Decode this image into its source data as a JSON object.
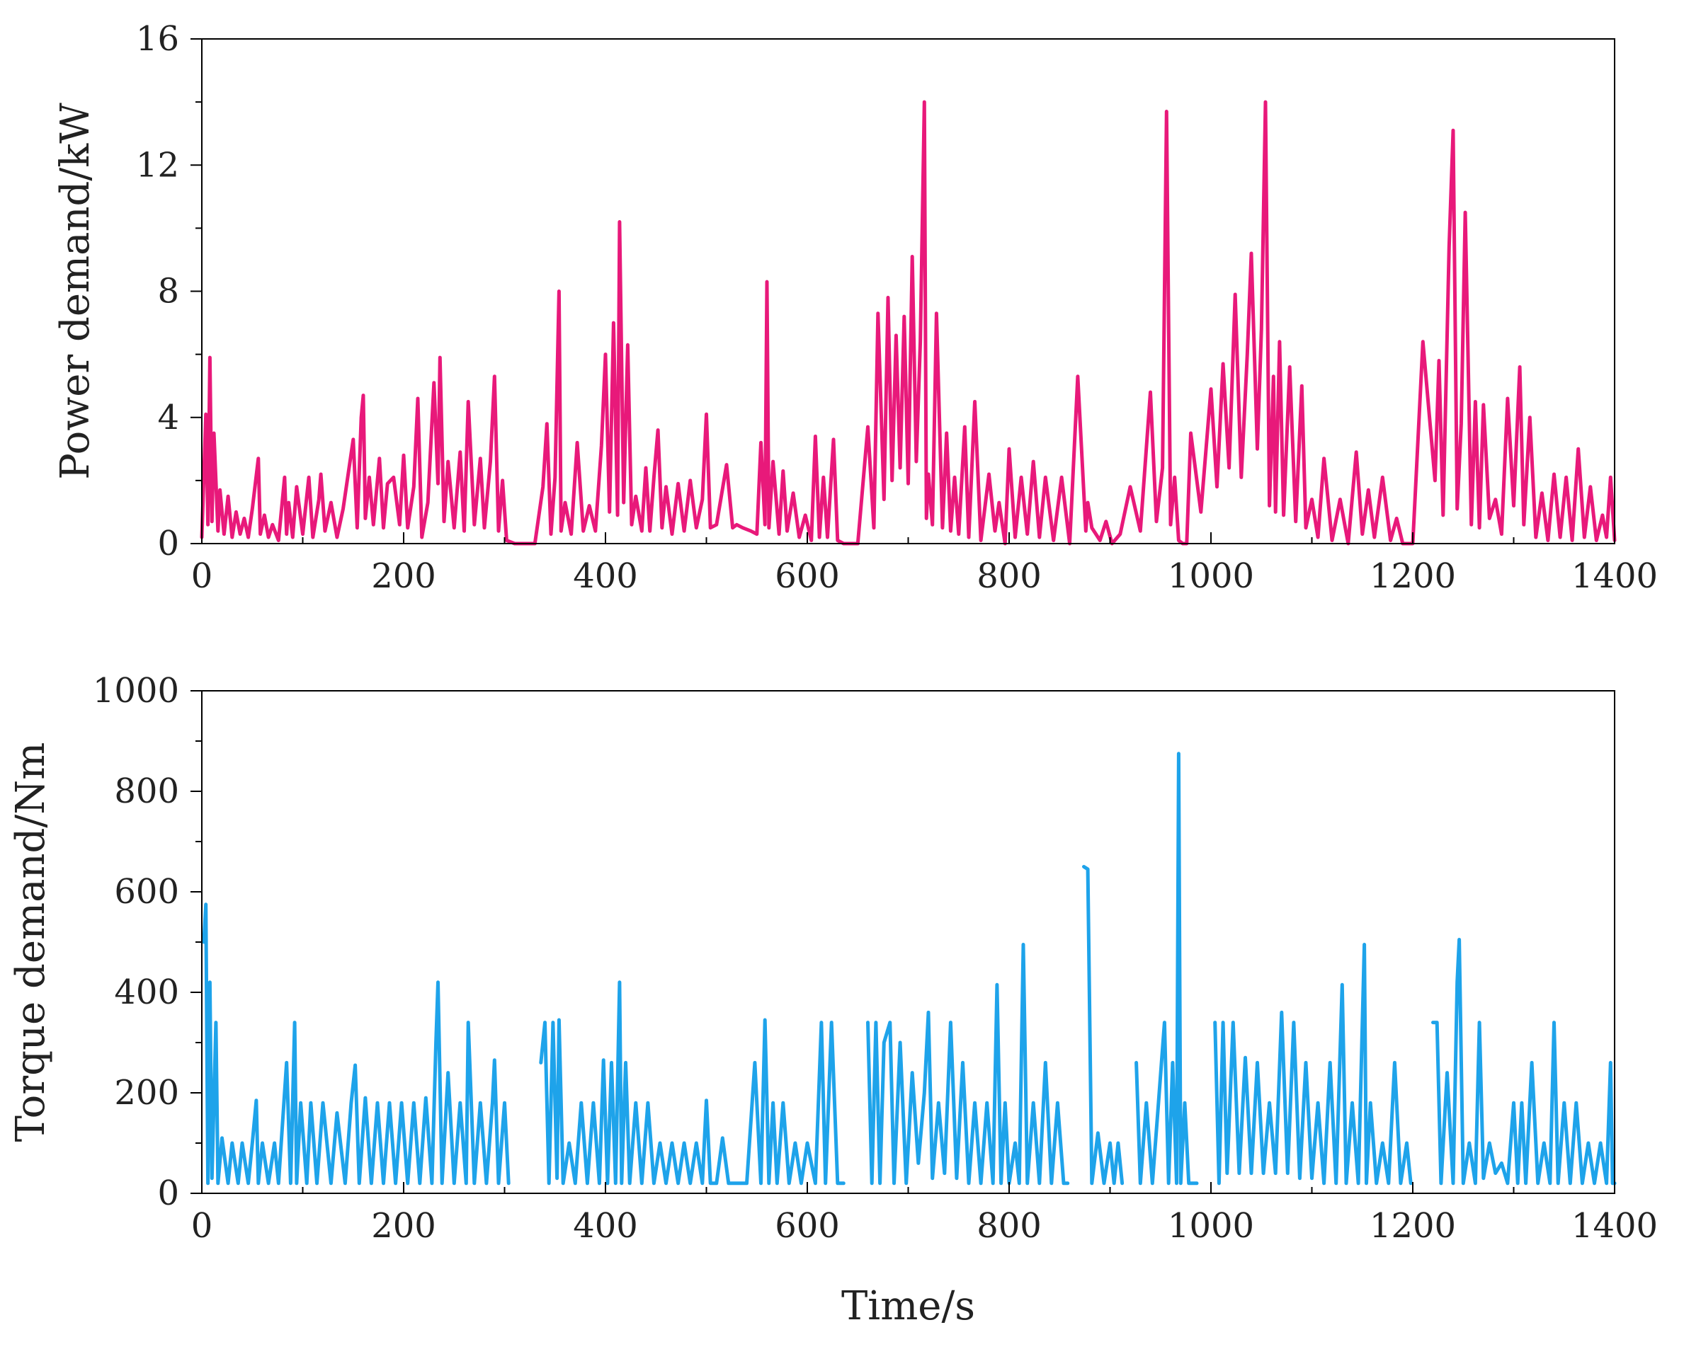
{
  "chart_data": [
    {
      "type": "line",
      "title": "",
      "xlabel": "",
      "ylabel": "Power demand/kW",
      "xlim": [
        0,
        1400
      ],
      "ylim": [
        0,
        16
      ],
      "x_ticks": [
        0,
        200,
        400,
        600,
        800,
        1000,
        1200,
        1400
      ],
      "y_ticks": [
        0,
        4,
        8,
        12,
        16
      ],
      "grid": false,
      "legend": "none",
      "series": [
        {
          "color": "#e8197a",
          "x": [
            0,
            4,
            6,
            8,
            10,
            12,
            16,
            18,
            22,
            26,
            30,
            34,
            38,
            42,
            46,
            50,
            56,
            58,
            62,
            66,
            70,
            76,
            82,
            84,
            86,
            90,
            94,
            100,
            106,
            110,
            116,
            118,
            122,
            128,
            134,
            140,
            150,
            154,
            158,
            160,
            162,
            166,
            170,
            176,
            180,
            184,
            190,
            196,
            200,
            204,
            210,
            214,
            218,
            224,
            230,
            234,
            236,
            240,
            244,
            250,
            256,
            260,
            264,
            270,
            276,
            280,
            286,
            290,
            294,
            298,
            302,
            310,
            320,
            330,
            338,
            342,
            346,
            350,
            354,
            356,
            360,
            366,
            372,
            378,
            384,
            390,
            396,
            400,
            404,
            408,
            412,
            414,
            418,
            422,
            426,
            430,
            436,
            440,
            444,
            448,
            452,
            456,
            460,
            466,
            472,
            478,
            484,
            490,
            496,
            500,
            504,
            510,
            520,
            526,
            530,
            536,
            544,
            550,
            554,
            558,
            560,
            562,
            566,
            572,
            576,
            580,
            586,
            592,
            598,
            604,
            608,
            612,
            616,
            620,
            626,
            630,
            636,
            642,
            650,
            660,
            666,
            670,
            676,
            680,
            684,
            688,
            692,
            696,
            700,
            704,
            708,
            712,
            716,
            718,
            720,
            724,
            728,
            734,
            738,
            742,
            746,
            750,
            756,
            760,
            766,
            772,
            780,
            786,
            790,
            796,
            800,
            806,
            812,
            818,
            824,
            830,
            836,
            844,
            852,
            860,
            868,
            876,
            878,
            882,
            886,
            890,
            896,
            902,
            910,
            920,
            930,
            940,
            946,
            952,
            956,
            960,
            964,
            968,
            972,
            976,
            980,
            990,
            1000,
            1006,
            1012,
            1018,
            1024,
            1030,
            1036,
            1040,
            1046,
            1050,
            1054,
            1058,
            1062,
            1064,
            1068,
            1072,
            1078,
            1084,
            1090,
            1094,
            1100,
            1106,
            1112,
            1120,
            1128,
            1136,
            1144,
            1150,
            1156,
            1162,
            1170,
            1178,
            1184,
            1190,
            1196,
            1200,
            1210,
            1222,
            1226,
            1230,
            1236,
            1240,
            1244,
            1248,
            1252,
            1258,
            1262,
            1266,
            1270,
            1276,
            1282,
            1288,
            1294,
            1300,
            1306,
            1310,
            1316,
            1322,
            1328,
            1334,
            1340,
            1346,
            1352,
            1358,
            1364,
            1370,
            1376,
            1382,
            1388,
            1392,
            1396,
            1400
          ],
          "y": [
            0.2,
            4.1,
            0.6,
            5.9,
            0.7,
            3.5,
            0.4,
            1.7,
            0.3,
            1.5,
            0.2,
            1.0,
            0.3,
            0.8,
            0.2,
            1.1,
            2.7,
            0.3,
            0.9,
            0.2,
            0.6,
            0.1,
            2.1,
            0.3,
            1.3,
            0.2,
            1.8,
            0.3,
            2.1,
            0.2,
            1.4,
            2.2,
            0.4,
            1.3,
            0.2,
            1.1,
            3.3,
            0.5,
            4.0,
            4.7,
            0.8,
            2.1,
            0.6,
            2.7,
            0.5,
            1.9,
            2.1,
            0.6,
            2.8,
            0.5,
            1.8,
            4.6,
            0.2,
            1.3,
            5.1,
            1.9,
            5.9,
            0.7,
            2.6,
            0.5,
            2.9,
            0.4,
            4.5,
            0.6,
            2.7,
            0.5,
            2.6,
            5.3,
            0.4,
            2.0,
            0.1,
            0.0,
            0.0,
            0.0,
            1.8,
            3.8,
            0.3,
            2.1,
            8.0,
            0.4,
            1.3,
            0.3,
            3.2,
            0.4,
            1.2,
            0.4,
            3.1,
            6.0,
            1.0,
            7.0,
            0.9,
            10.2,
            1.3,
            6.3,
            0.6,
            1.5,
            0.4,
            2.4,
            0.4,
            2.1,
            3.6,
            0.5,
            1.8,
            0.3,
            1.9,
            0.4,
            2.0,
            0.5,
            1.4,
            4.1,
            0.5,
            0.6,
            2.5,
            0.5,
            0.6,
            0.5,
            0.4,
            0.3,
            3.2,
            0.6,
            8.3,
            0.5,
            2.6,
            0.3,
            2.3,
            0.4,
            1.6,
            0.2,
            0.9,
            0.1,
            3.4,
            0.2,
            2.1,
            0.2,
            3.3,
            0.1,
            0.0,
            0.0,
            0.0,
            3.7,
            0.5,
            7.3,
            1.4,
            7.8,
            2.0,
            6.6,
            2.4,
            7.2,
            1.9,
            9.1,
            2.6,
            6.4,
            14.0,
            0.8,
            2.2,
            0.6,
            7.3,
            0.5,
            3.5,
            0.4,
            2.1,
            0.3,
            3.7,
            0.2,
            4.5,
            0.1,
            2.2,
            0.4,
            1.3,
            0.0,
            3.0,
            0.2,
            2.1,
            0.3,
            2.6,
            0.2,
            2.1,
            0.1,
            2.1,
            0.0,
            5.3,
            0.4,
            1.3,
            0.5,
            0.3,
            0.1,
            0.7,
            0.0,
            0.3,
            1.8,
            0.4,
            4.8,
            0.7,
            2.4,
            13.7,
            0.6,
            2.1,
            0.1,
            0.0,
            0.0,
            3.5,
            1.0,
            4.9,
            1.8,
            5.7,
            2.4,
            7.9,
            2.1,
            6.0,
            9.2,
            3.0,
            6.8,
            14.0,
            1.2,
            5.3,
            1.0,
            6.4,
            0.9,
            5.6,
            0.7,
            5.0,
            0.5,
            1.4,
            0.2,
            2.7,
            0.1,
            1.4,
            0.0,
            2.9,
            0.3,
            1.7,
            0.2,
            2.1,
            0.1,
            0.8,
            0.0,
            0.0,
            0.0,
            6.4,
            2.0,
            5.8,
            0.9,
            9.4,
            13.1,
            1.1,
            3.8,
            10.5,
            0.6,
            4.5,
            0.5,
            4.4,
            0.8,
            1.4,
            0.3,
            4.6,
            1.2,
            5.6,
            0.6,
            4.0,
            0.2,
            1.6,
            0.1,
            2.2,
            0.2,
            2.1,
            0.1,
            3.0,
            0.2,
            1.8,
            0.1,
            0.9,
            0.2,
            2.1,
            0.1
          ]
        }
      ]
    },
    {
      "type": "line",
      "title": "",
      "xlabel": "Time/s",
      "ylabel": "Torque demand/Nm",
      "xlim": [
        0,
        1400
      ],
      "ylim": [
        0,
        1000
      ],
      "x_ticks": [
        0,
        200,
        400,
        600,
        800,
        1000,
        1200,
        1400
      ],
      "y_ticks": [
        0,
        200,
        400,
        600,
        800,
        1000
      ],
      "grid": false,
      "legend": "none",
      "series": [
        {
          "color": "#1ea3ea",
          "x": [
            2,
            4,
            6,
            8,
            10,
            14,
            16,
            20,
            26,
            30,
            36,
            40,
            46,
            50,
            54,
            56,
            60,
            66,
            72,
            76,
            84,
            88,
            92,
            94,
            98,
            104,
            108,
            114,
            120,
            128,
            134,
            142,
            148,
            152,
            156,
            162,
            168,
            174,
            180,
            186,
            192,
            198,
            204,
            210,
            216,
            222,
            228,
            232,
            234,
            238,
            244,
            250,
            256,
            262,
            264,
            270,
            276,
            282,
            288,
            290,
            294,
            300,
            304
          ],
          "y": [
            500,
            575,
            20,
            420,
            30,
            340,
            20,
            110,
            20,
            100,
            20,
            100,
            20,
            100,
            185,
            20,
            100,
            20,
            100,
            20,
            260,
            20,
            340,
            20,
            180,
            20,
            180,
            20,
            180,
            20,
            160,
            20,
            180,
            255,
            20,
            190,
            20,
            180,
            20,
            180,
            20,
            180,
            20,
            180,
            20,
            190,
            20,
            300,
            420,
            20,
            240,
            20,
            180,
            20,
            340,
            20,
            180,
            20,
            180,
            265,
            20,
            180,
            20
          ]
        },
        {
          "color": "#1ea3ea",
          "x": [
            336,
            340,
            344,
            348,
            352,
            354,
            358,
            364,
            370,
            376,
            382,
            388,
            394,
            398,
            402,
            406,
            410,
            414,
            416,
            420,
            424,
            430,
            436,
            442,
            448,
            454,
            460,
            466,
            472,
            478,
            484,
            490,
            496,
            500,
            504,
            510,
            516,
            522,
            528,
            534,
            540,
            548,
            554,
            558,
            562,
            566,
            570,
            576,
            582,
            588,
            594,
            600,
            608,
            614,
            618,
            624,
            630,
            636
          ],
          "y": [
            260,
            340,
            20,
            340,
            30,
            345,
            20,
            100,
            20,
            180,
            20,
            180,
            20,
            265,
            20,
            260,
            20,
            420,
            20,
            260,
            20,
            180,
            20,
            180,
            20,
            100,
            20,
            100,
            20,
            100,
            20,
            100,
            20,
            185,
            20,
            20,
            110,
            20,
            20,
            20,
            20,
            260,
            20,
            345,
            20,
            180,
            20,
            180,
            20,
            100,
            20,
            100,
            20,
            340,
            20,
            340,
            20,
            20
          ]
        },
        {
          "color": "#1ea3ea",
          "x": [
            660,
            664,
            668,
            672,
            676,
            682,
            686,
            692,
            698,
            704,
            710,
            716,
            720,
            724,
            730,
            736,
            742,
            748,
            754,
            760,
            766,
            772,
            778,
            784,
            788,
            792,
            796,
            800,
            806,
            810,
            814,
            818,
            824,
            830,
            836,
            842,
            848,
            854,
            858
          ],
          "y": [
            340,
            20,
            340,
            20,
            300,
            340,
            20,
            300,
            20,
            240,
            60,
            200,
            360,
            30,
            180,
            40,
            340,
            30,
            260,
            20,
            180,
            20,
            180,
            20,
            415,
            20,
            180,
            20,
            100,
            20,
            495,
            20,
            180,
            20,
            260,
            20,
            180,
            20,
            20
          ]
        },
        {
          "color": "#1ea3ea",
          "x": [
            874,
            878,
            882,
            888,
            894,
            900,
            904,
            908,
            912
          ],
          "y": [
            650,
            645,
            20,
            120,
            20,
            100,
            20,
            100,
            20
          ]
        },
        {
          "color": "#1ea3ea",
          "x": [
            926,
            930,
            936,
            942,
            948,
            954,
            958,
            962,
            966,
            968,
            970,
            974,
            978,
            982,
            986
          ],
          "y": [
            260,
            20,
            180,
            20,
            180,
            340,
            20,
            260,
            20,
            875,
            20,
            180,
            20,
            20,
            20
          ]
        },
        {
          "color": "#1ea3ea",
          "x": [
            1004,
            1008,
            1012,
            1016,
            1022,
            1028,
            1034,
            1040,
            1046,
            1052,
            1058,
            1064,
            1070,
            1076,
            1082,
            1088,
            1094,
            1100,
            1106,
            1112,
            1118,
            1124,
            1130,
            1134,
            1140,
            1146,
            1152,
            1154,
            1158,
            1164,
            1170,
            1176,
            1182,
            1188,
            1194,
            1198
          ],
          "y": [
            340,
            20,
            340,
            40,
            340,
            40,
            270,
            40,
            260,
            40,
            180,
            40,
            360,
            40,
            340,
            30,
            260,
            30,
            180,
            20,
            260,
            20,
            415,
            20,
            180,
            20,
            495,
            20,
            180,
            20,
            100,
            20,
            260,
            20,
            100,
            20
          ]
        },
        {
          "color": "#1ea3ea",
          "x": [
            1220,
            1224,
            1228,
            1234,
            1240,
            1244,
            1246,
            1250,
            1256,
            1262,
            1266,
            1270,
            1276,
            1282,
            1288,
            1294,
            1300,
            1304,
            1308,
            1312,
            1318,
            1324,
            1330,
            1336,
            1340,
            1344,
            1350,
            1356,
            1362,
            1368,
            1374,
            1380,
            1386,
            1392,
            1396,
            1398,
            1400
          ],
          "y": [
            340,
            340,
            20,
            240,
            20,
            420,
            505,
            20,
            100,
            20,
            340,
            30,
            100,
            40,
            60,
            20,
            180,
            20,
            180,
            20,
            260,
            20,
            100,
            20,
            340,
            20,
            180,
            20,
            180,
            20,
            100,
            20,
            100,
            20,
            260,
            20,
            20
          ]
        }
      ]
    }
  ]
}
